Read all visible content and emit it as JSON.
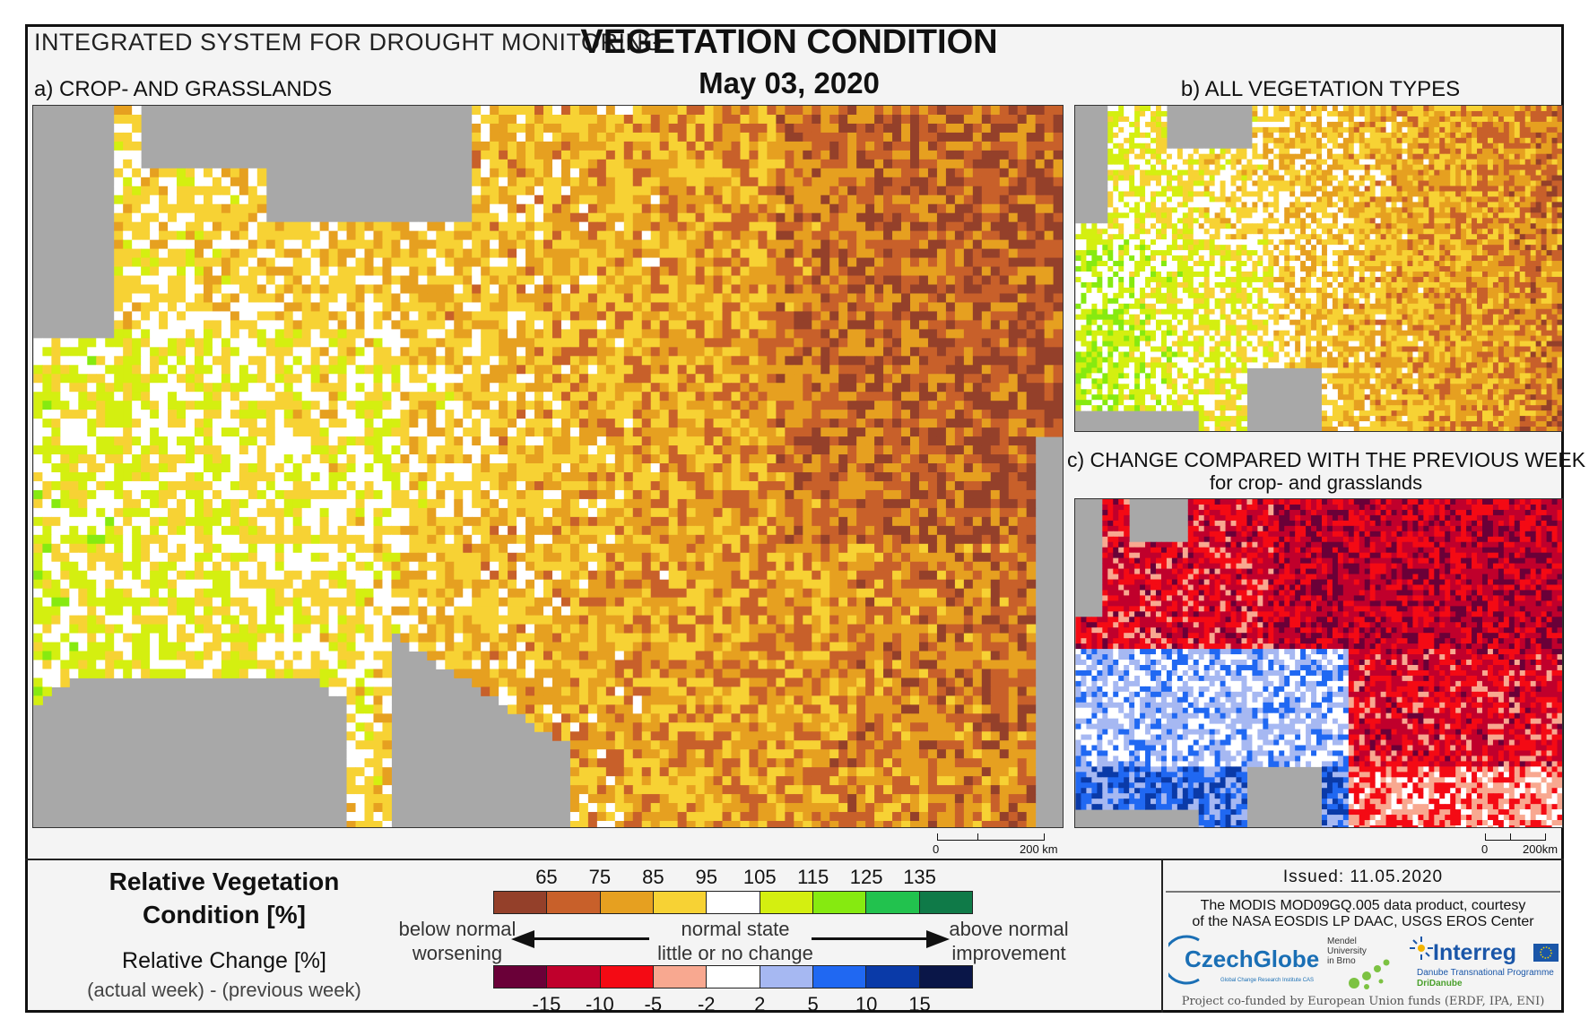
{
  "header": {
    "system": "INTEGRATED SYSTEM FOR DROUGHT MONITORING",
    "title": "VEGETATION CONDITION",
    "date": "May 03, 2020"
  },
  "panels": {
    "a": {
      "label": "a) CROP- AND GRASSLANDS",
      "scale_start": "0",
      "scale_end": "200 km"
    },
    "b": {
      "label": "b) ALL VEGETATION TYPES"
    },
    "c": {
      "label": "c) CHANGE COMPARED WITH THE PREVIOUS WEEK",
      "sublabel": "for crop- and grasslands",
      "scale_start": "0",
      "scale_end": "200km"
    }
  },
  "legend": {
    "rvc_title_line1": "Relative Vegetation",
    "rvc_title_line2": "Condition [%]",
    "rc_title": "Relative Change [%]",
    "rc_subtitle": "(actual week) - (previous week)",
    "rvc_ticks": [
      "65",
      "75",
      "85",
      "95",
      "105",
      "115",
      "125",
      "135"
    ],
    "rvc_colors": [
      "#94402a",
      "#c8602a",
      "#e6a020",
      "#f7d234",
      "#ffffff",
      "#d4ef10",
      "#86ea10",
      "#22c24e",
      "#0f7a48"
    ],
    "rc_ticks": [
      "-15",
      "-10",
      "-5",
      "-2",
      "2",
      "5",
      "10",
      "15"
    ],
    "rc_colors": [
      "#6a0038",
      "#c0002c",
      "#f40a14",
      "#f8a890",
      "#ffffff",
      "#a6b8f2",
      "#2068f2",
      "#0a3aa8",
      "#0a1648"
    ],
    "left_line1": "below normal",
    "left_line2": "worsening",
    "center_line1": "normal state",
    "center_line2": "little or no change",
    "right_line1": "above normal",
    "right_line2": "improvement"
  },
  "info": {
    "issued": "Issued: 11.05.2020",
    "credit_line1": "The MODIS MOD09GQ.005 data product, courtesy",
    "credit_line2": "of the NASA EOSDIS LP DAAC, USGS EROS Center",
    "logo_czechglobe": "CzechGlobe",
    "logo_czechglobe_sub": "Global Change Research Institute CAS",
    "logo_mendel_1": "Mendel",
    "logo_mendel_2": "University",
    "logo_mendel_3": "in Brno",
    "logo_interreg": "Interreg",
    "logo_interreg_sub": "Danube Transnational Programme",
    "logo_dridanube": "DriDanube",
    "funded": "Project co-funded by European Union funds (ERDF, IPA, ENI)"
  }
}
